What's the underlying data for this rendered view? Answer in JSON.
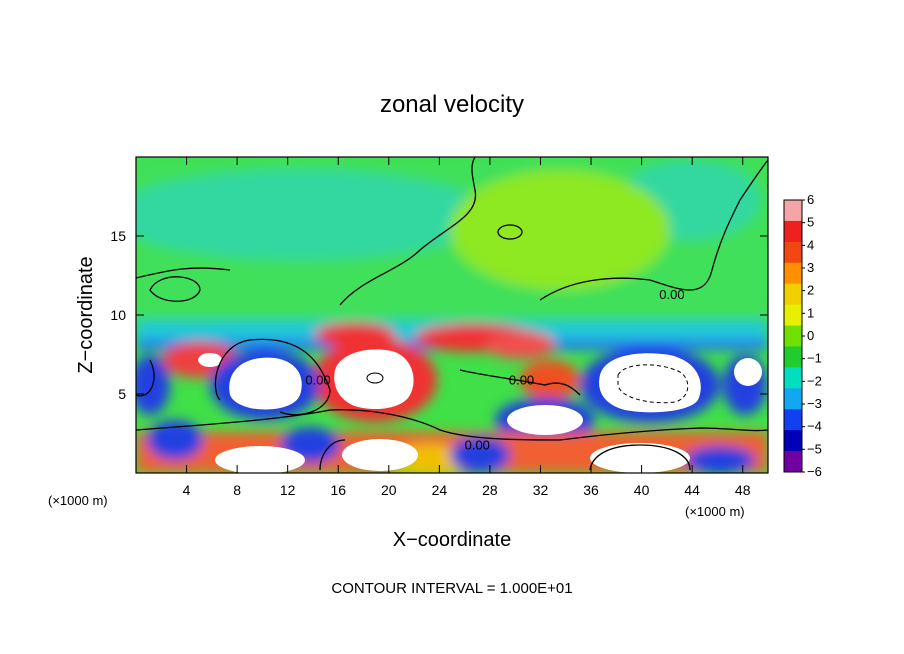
{
  "chart_data": {
    "type": "heatmap",
    "title": "zonal velocity",
    "xlabel": "X−coordinate",
    "ylabel": "Z−coordinate",
    "x_unit_left": "(×1000 m)",
    "x_unit_right": "(×1000 m)",
    "xlim": [
      0,
      50
    ],
    "ylim": [
      0,
      20
    ],
    "xticks": [
      4,
      8,
      12,
      16,
      20,
      24,
      28,
      32,
      36,
      40,
      44,
      48
    ],
    "yticks": [
      5,
      10,
      15
    ],
    "colorbar": {
      "range": [
        -6,
        6
      ],
      "ticks": [
        6,
        5,
        4,
        3,
        2,
        1,
        0,
        -1,
        -2,
        -3,
        -4,
        -5,
        -6
      ],
      "tick_labels": [
        "6",
        "5",
        "4",
        "3",
        "2",
        "1",
        "0",
        "−1",
        "−2",
        "−3",
        "−4",
        "−5",
        "−6"
      ],
      "colors": [
        "#f4a6a6",
        "#ee2020",
        "#f04810",
        "#ff9000",
        "#f2d000",
        "#e8f000",
        "#70e000",
        "#20cc30",
        "#00e0c0",
        "#10a8f0",
        "#1040f0",
        "#0000b8",
        "#7000a0"
      ]
    },
    "contour_labels": [
      {
        "text": "0.00",
        "x": 42.4,
        "z": 11.0
      },
      {
        "text": "0.00",
        "x": 30.5,
        "z": 5.6
      },
      {
        "text": "0.00",
        "x": 14.4,
        "z": 5.6
      },
      {
        "text": "0.00",
        "x": 27.0,
        "z": 1.5
      }
    ],
    "contour_interval_text": "CONTOUR INTERVAL = 1.000E+01"
  }
}
